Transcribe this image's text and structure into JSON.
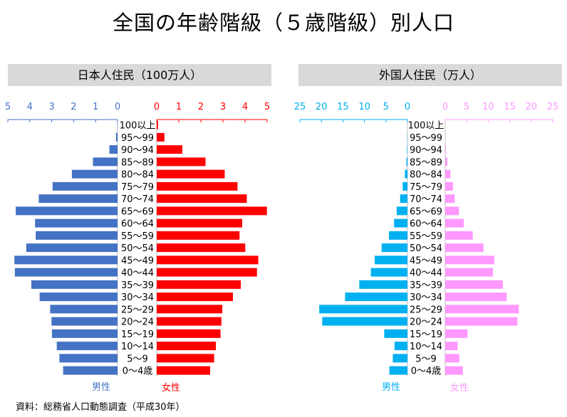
{
  "title": "全国の年齢階級（５歳階級）別人口",
  "source": "資料：総務省人口動態調査（平成30年）",
  "colors": {
    "jp_male": "#4472c4",
    "jp_female": "#ff0000",
    "fr_male": "#00b0f0",
    "fr_female": "#ff99ff",
    "header_bg": "#d9d9d9"
  },
  "age_groups": [
    "100以上",
    "95～99",
    "90～94",
    "85～89",
    "80～84",
    "75～79",
    "70～74",
    "65～69",
    "60～64",
    "55～59",
    "50～54",
    "45～49",
    "40～44",
    "35～39",
    "30～34",
    "25～29",
    "20～24",
    "15～19",
    "10～14",
    "5～9",
    "0～4歳"
  ],
  "chart_data": [
    {
      "type": "bar",
      "title": "日本人住民（100万人）",
      "unit": "100万人",
      "categories": [
        "100以上",
        "95～99",
        "90～94",
        "85～89",
        "80～84",
        "75～79",
        "70～74",
        "65～69",
        "60～64",
        "55～59",
        "50～54",
        "45～49",
        "40～44",
        "35～39",
        "30～34",
        "25～29",
        "20～24",
        "15～19",
        "10～14",
        "5～9",
        "0～4歳"
      ],
      "male_axis": {
        "ticks": [
          5,
          4,
          3,
          2,
          1,
          0
        ],
        "range": [
          0,
          5
        ]
      },
      "female_axis": {
        "ticks": [
          0,
          1,
          2,
          3,
          4,
          5
        ],
        "range": [
          0,
          5
        ]
      },
      "series": [
        {
          "name": "男性",
          "values": [
            0.01,
            0.07,
            0.37,
            1.12,
            2.08,
            2.96,
            3.59,
            4.64,
            3.76,
            3.73,
            4.16,
            4.7,
            4.68,
            3.93,
            3.55,
            3.07,
            3.01,
            2.99,
            2.77,
            2.65,
            2.48
          ]
        },
        {
          "name": "女性",
          "values": [
            0.06,
            0.35,
            1.16,
            2.21,
            3.08,
            3.66,
            4.08,
            4.99,
            3.87,
            3.75,
            4.01,
            4.6,
            4.54,
            3.81,
            3.45,
            2.97,
            2.93,
            2.89,
            2.68,
            2.6,
            2.42
          ]
        }
      ]
    },
    {
      "type": "bar",
      "title": "外国人住民（万人）",
      "unit": "万人",
      "categories": [
        "100以上",
        "95～99",
        "90～94",
        "85～89",
        "80～84",
        "75～79",
        "70～74",
        "65～69",
        "60～64",
        "55～59",
        "50～54",
        "45～49",
        "40～44",
        "35～39",
        "30～34",
        "25～29",
        "20～24",
        "15～19",
        "10～14",
        "5～9",
        "0～4歳"
      ],
      "male_axis": {
        "ticks": [
          25,
          20,
          15,
          10,
          5,
          0
        ],
        "range": [
          0,
          25
        ]
      },
      "female_axis": {
        "ticks": [
          0,
          5,
          10,
          15,
          20,
          25
        ],
        "range": [
          0,
          25
        ]
      },
      "series": [
        {
          "name": "男性",
          "values": [
            0.0,
            0.05,
            0.1,
            0.25,
            0.6,
            1.1,
            1.7,
            2.5,
            3.1,
            4.3,
            6.0,
            7.6,
            8.5,
            11.2,
            14.5,
            20.5,
            19.8,
            5.4,
            3.0,
            3.4,
            4.2
          ]
        },
        {
          "name": "女性",
          "values": [
            0.0,
            0.05,
            0.15,
            0.5,
            1.2,
            1.8,
            2.2,
            3.2,
            4.3,
            6.4,
            8.9,
            11.4,
            11.1,
            13.4,
            14.3,
            17.1,
            16.8,
            5.2,
            2.9,
            3.3,
            4.1
          ]
        }
      ]
    }
  ],
  "panels": [
    {
      "header": "日本人住民（100万人）",
      "male_label": "男性",
      "female_label": "女性"
    },
    {
      "header": "外国人住民（万人）",
      "male_label": "男性",
      "female_label": "女性"
    }
  ]
}
